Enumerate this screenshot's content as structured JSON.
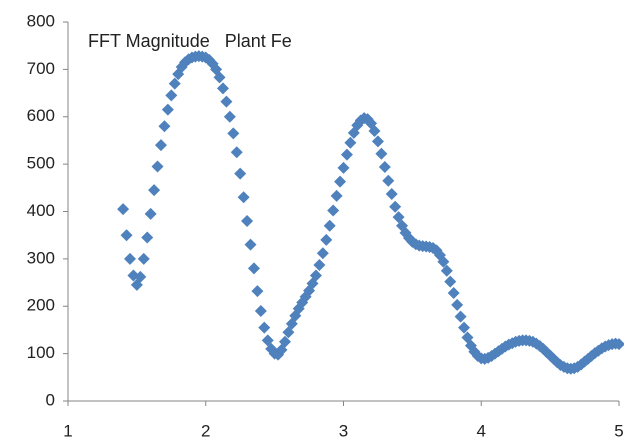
{
  "chart_data": {
    "type": "scatter",
    "title": "FFT Magnitude   Plant Fe",
    "color": "#4f81bd",
    "marker": "diamond",
    "xlim": [
      1,
      5
    ],
    "xticks": [
      1,
      2,
      3,
      4,
      5
    ],
    "ylim": [
      0,
      800
    ],
    "yticks": [
      0,
      100,
      200,
      300,
      400,
      500,
      600,
      700,
      800
    ],
    "grid": false,
    "x": [
      1.4,
      1.425,
      1.45,
      1.475,
      1.5,
      1.525,
      1.55,
      1.575,
      1.6,
      1.625,
      1.65,
      1.675,
      1.7,
      1.725,
      1.75,
      1.775,
      1.8,
      1.825,
      1.85,
      1.875,
      1.9,
      1.925,
      1.95,
      1.975,
      2.0,
      2.025,
      2.05,
      2.075,
      2.1,
      2.125,
      2.15,
      2.175,
      2.2,
      2.225,
      2.25,
      2.275,
      2.3,
      2.325,
      2.35,
      2.375,
      2.4,
      2.425,
      2.45,
      2.475,
      2.5,
      2.525,
      2.55,
      2.575,
      2.6,
      2.625,
      2.65,
      2.675,
      2.7,
      2.725,
      2.75,
      2.775,
      2.8,
      2.825,
      2.85,
      2.875,
      2.9,
      2.925,
      2.95,
      2.975,
      3.0,
      3.025,
      3.05,
      3.075,
      3.1,
      3.125,
      3.15,
      3.175,
      3.2,
      3.225,
      3.25,
      3.275,
      3.3,
      3.325,
      3.35,
      3.375,
      3.4,
      3.425,
      3.45,
      3.475,
      3.5,
      3.525,
      3.55,
      3.575,
      3.6,
      3.625,
      3.65,
      3.675,
      3.7,
      3.725,
      3.75,
      3.775,
      3.8,
      3.825,
      3.85,
      3.875,
      3.9,
      3.925,
      3.95,
      3.975,
      4.0,
      4.025,
      4.05,
      4.075,
      4.1,
      4.125,
      4.15,
      4.175,
      4.2,
      4.225,
      4.25,
      4.275,
      4.3,
      4.325,
      4.35,
      4.375,
      4.4,
      4.425,
      4.45,
      4.475,
      4.5,
      4.525,
      4.55,
      4.575,
      4.6,
      4.625,
      4.65,
      4.675,
      4.7,
      4.725,
      4.75,
      4.775,
      4.8,
      4.825,
      4.85,
      4.875,
      4.9,
      4.925,
      4.95,
      4.975,
      5.0
    ],
    "values": [
      405,
      350,
      300,
      265,
      245,
      262,
      300,
      345,
      395,
      445,
      495,
      540,
      580,
      615,
      645,
      670,
      690,
      705,
      715,
      721,
      725,
      727,
      728,
      727,
      725,
      720,
      712,
      700,
      683,
      660,
      632,
      600,
      565,
      525,
      480,
      430,
      380,
      330,
      280,
      232,
      190,
      155,
      128,
      110,
      100,
      98,
      108,
      125,
      145,
      163,
      180,
      195,
      208,
      220,
      233,
      248,
      265,
      287,
      312,
      340,
      370,
      402,
      433,
      463,
      492,
      520,
      545,
      566,
      582,
      592,
      597,
      595,
      586,
      570,
      548,
      522,
      494,
      465,
      437,
      410,
      388,
      370,
      355,
      344,
      336,
      331,
      328,
      327,
      326,
      325,
      323,
      318,
      308,
      294,
      275,
      252,
      228,
      203,
      178,
      155,
      134,
      117,
      104,
      95,
      90,
      89,
      91,
      95,
      100,
      105,
      110,
      115,
      119,
      122,
      125,
      127,
      128,
      128,
      127,
      125,
      121,
      116,
      110,
      103,
      96,
      89,
      82,
      76,
      72,
      69,
      68,
      69,
      72,
      77,
      83,
      89,
      95,
      101,
      106,
      111,
      115,
      118,
      120,
      121,
      120
    ]
  }
}
